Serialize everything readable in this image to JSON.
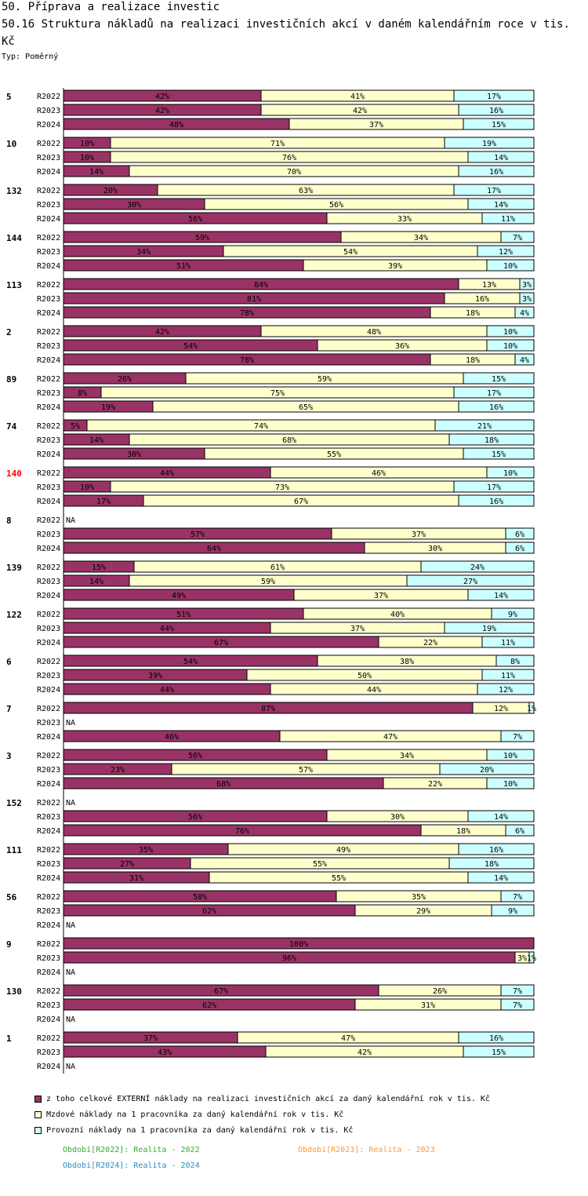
{
  "header": {
    "title": "50. Příprava a realizace investic",
    "subtitle": "50.16 Struktura nákladů na realizaci investičních akcí v daném kalendářním roce v tis. Kč",
    "type_label": "Typ: Poměrný"
  },
  "colors": {
    "ext": "#993366",
    "mzdy": "#ffffcc",
    "prov": "#ccffff",
    "highlight": "#ff0000"
  },
  "chart_data": {
    "type": "bar",
    "orientation": "horizontal-stacked-100",
    "series_names": [
      "z toho celkové EXTERNÍ náklady na realizaci investičních akcí za daný kalendářní rok v tis. Kč",
      "Mzdové náklady na 1 pracovníka za daný kalendářní rok v tis. Kč",
      "Provozní náklady na 1 pracovníka za daný kalendářní rok v tis. Kč"
    ],
    "groups": [
      {
        "id": "5",
        "rows": [
          {
            "p": "R2022",
            "v": [
              42,
              41,
              17
            ]
          },
          {
            "p": "R2023",
            "v": [
              42,
              42,
              16
            ]
          },
          {
            "p": "R2024",
            "v": [
              48,
              37,
              15
            ]
          }
        ]
      },
      {
        "id": "10",
        "rows": [
          {
            "p": "R2022",
            "v": [
              10,
              71,
              19
            ]
          },
          {
            "p": "R2023",
            "v": [
              10,
              76,
              14
            ]
          },
          {
            "p": "R2024",
            "v": [
              14,
              70,
              16
            ]
          }
        ]
      },
      {
        "id": "132",
        "rows": [
          {
            "p": "R2022",
            "v": [
              20,
              63,
              17
            ]
          },
          {
            "p": "R2023",
            "v": [
              30,
              56,
              14
            ]
          },
          {
            "p": "R2024",
            "v": [
              56,
              33,
              11
            ]
          }
        ]
      },
      {
        "id": "144",
        "rows": [
          {
            "p": "R2022",
            "v": [
              59,
              34,
              7
            ]
          },
          {
            "p": "R2023",
            "v": [
              34,
              54,
              12
            ]
          },
          {
            "p": "R2024",
            "v": [
              51,
              39,
              10
            ]
          }
        ]
      },
      {
        "id": "113",
        "rows": [
          {
            "p": "R2022",
            "v": [
              84,
              13,
              3
            ]
          },
          {
            "p": "R2023",
            "v": [
              81,
              16,
              3
            ]
          },
          {
            "p": "R2024",
            "v": [
              78,
              18,
              4
            ]
          }
        ]
      },
      {
        "id": "2",
        "rows": [
          {
            "p": "R2022",
            "v": [
              42,
              48,
              10
            ]
          },
          {
            "p": "R2023",
            "v": [
              54,
              36,
              10
            ]
          },
          {
            "p": "R2024",
            "v": [
              78,
              18,
              4
            ]
          }
        ]
      },
      {
        "id": "89",
        "rows": [
          {
            "p": "R2022",
            "v": [
              26,
              59,
              15
            ]
          },
          {
            "p": "R2023",
            "v": [
              8,
              75,
              17
            ]
          },
          {
            "p": "R2024",
            "v": [
              19,
              65,
              16
            ]
          }
        ]
      },
      {
        "id": "74",
        "rows": [
          {
            "p": "R2022",
            "v": [
              5,
              74,
              21
            ]
          },
          {
            "p": "R2023",
            "v": [
              14,
              68,
              18
            ]
          },
          {
            "p": "R2024",
            "v": [
              30,
              55,
              15
            ]
          }
        ]
      },
      {
        "id": "140",
        "highlight": true,
        "rows": [
          {
            "p": "R2022",
            "v": [
              44,
              46,
              10
            ]
          },
          {
            "p": "R2023",
            "v": [
              10,
              73,
              17
            ]
          },
          {
            "p": "R2024",
            "v": [
              17,
              67,
              16
            ]
          }
        ]
      },
      {
        "id": "8",
        "rows": [
          {
            "p": "R2022",
            "na": true
          },
          {
            "p": "R2023",
            "v": [
              57,
              37,
              6
            ]
          },
          {
            "p": "R2024",
            "v": [
              64,
              30,
              6
            ]
          }
        ]
      },
      {
        "id": "139",
        "rows": [
          {
            "p": "R2022",
            "v": [
              15,
              61,
              24
            ]
          },
          {
            "p": "R2023",
            "v": [
              14,
              59,
              27
            ]
          },
          {
            "p": "R2024",
            "v": [
              49,
              37,
              14
            ]
          }
        ]
      },
      {
        "id": "122",
        "rows": [
          {
            "p": "R2022",
            "v": [
              51,
              40,
              9
            ]
          },
          {
            "p": "R2023",
            "v": [
              44,
              37,
              19
            ]
          },
          {
            "p": "R2024",
            "v": [
              67,
              22,
              11
            ]
          }
        ]
      },
      {
        "id": "6",
        "rows": [
          {
            "p": "R2022",
            "v": [
              54,
              38,
              8
            ]
          },
          {
            "p": "R2023",
            "v": [
              39,
              50,
              11
            ]
          },
          {
            "p": "R2024",
            "v": [
              44,
              44,
              12
            ]
          }
        ]
      },
      {
        "id": "7",
        "rows": [
          {
            "p": "R2022",
            "v": [
              87,
              12,
              1
            ]
          },
          {
            "p": "R2023",
            "na": true
          },
          {
            "p": "R2024",
            "v": [
              46,
              47,
              7
            ]
          }
        ]
      },
      {
        "id": "3",
        "rows": [
          {
            "p": "R2022",
            "v": [
              56,
              34,
              10
            ]
          },
          {
            "p": "R2023",
            "v": [
              23,
              57,
              20
            ]
          },
          {
            "p": "R2024",
            "v": [
              68,
              22,
              10
            ]
          }
        ]
      },
      {
        "id": "152",
        "rows": [
          {
            "p": "R2022",
            "na": true
          },
          {
            "p": "R2023",
            "v": [
              56,
              30,
              14
            ]
          },
          {
            "p": "R2024",
            "v": [
              76,
              18,
              6
            ]
          }
        ]
      },
      {
        "id": "111",
        "rows": [
          {
            "p": "R2022",
            "v": [
              35,
              49,
              16
            ]
          },
          {
            "p": "R2023",
            "v": [
              27,
              55,
              18
            ]
          },
          {
            "p": "R2024",
            "v": [
              31,
              55,
              14
            ]
          }
        ]
      },
      {
        "id": "56",
        "rows": [
          {
            "p": "R2022",
            "v": [
              58,
              35,
              7
            ]
          },
          {
            "p": "R2023",
            "v": [
              62,
              29,
              9
            ]
          },
          {
            "p": "R2024",
            "na": true
          }
        ]
      },
      {
        "id": "9",
        "rows": [
          {
            "p": "R2022",
            "v": [
              100,
              0,
              0
            ]
          },
          {
            "p": "R2023",
            "v": [
              96,
              3,
              1
            ]
          },
          {
            "p": "R2024",
            "na": true
          }
        ]
      },
      {
        "id": "130",
        "rows": [
          {
            "p": "R2022",
            "v": [
              67,
              26,
              7
            ]
          },
          {
            "p": "R2023",
            "v": [
              62,
              31,
              7
            ]
          },
          {
            "p": "R2024",
            "na": true
          }
        ]
      },
      {
        "id": "1",
        "rows": [
          {
            "p": "R2022",
            "v": [
              37,
              47,
              16
            ]
          },
          {
            "p": "R2023",
            "v": [
              43,
              42,
              15
            ]
          },
          {
            "p": "R2024",
            "na": true
          }
        ]
      }
    ],
    "value_suffix": "%",
    "na_label": "NA",
    "xlim": [
      0,
      100
    ]
  },
  "legend": {
    "items": [
      {
        "label": "z toho celkové EXTERNÍ náklady na realizaci investičních akcí za daný kalendářní rok v tis. Kč",
        "color": "#993366"
      },
      {
        "label": "Mzdové náklady na 1 pracovníka za daný kalendářní rok v tis. Kč",
        "color": "#ffffcc"
      },
      {
        "label": "Provozní náklady na 1 pracovníka za daný kalendářní rok v tis. Kč",
        "color": "#ccffff"
      }
    ],
    "periods": [
      {
        "label": "Období[R2022]: Realita - 2022",
        "color": "#33aa33"
      },
      {
        "label": "Období[R2023]: Realita - 2023",
        "color": "#ff9933"
      },
      {
        "label": "Období[R2024]: Realita - 2024",
        "color": "#3388bb"
      }
    ]
  }
}
